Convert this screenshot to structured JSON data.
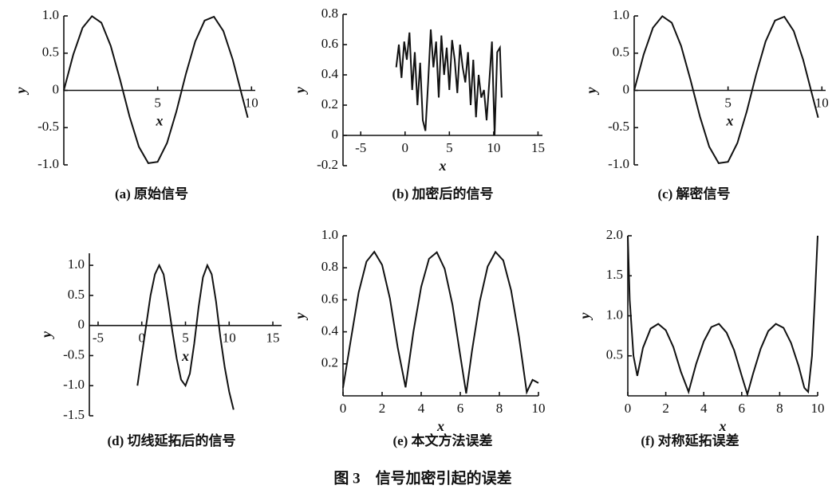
{
  "caption": "图 3    信号加密引起的误差",
  "chart_data": [
    {
      "type": "line",
      "caption": "(a) 原始信号",
      "xlabel": "x",
      "ylabel": "y",
      "color": "#111111",
      "x": [
        0,
        0.5,
        1,
        1.5,
        2,
        2.5,
        3,
        3.5,
        4,
        4.5,
        5,
        5.5,
        6,
        6.5,
        7,
        7.5,
        8,
        8.5,
        9,
        9.5,
        9.8
      ],
      "values": [
        0,
        0.479,
        0.841,
        0.997,
        0.909,
        0.598,
        0.141,
        -0.351,
        -0.757,
        -0.978,
        -0.959,
        -0.706,
        -0.279,
        0.215,
        0.657,
        0.938,
        0.989,
        0.798,
        0.412,
        -0.075,
        -0.366
      ],
      "xlim": [
        0,
        10.2
      ],
      "ylim": [
        -1,
        1
      ],
      "xticks": [
        5,
        10
      ],
      "yticks": [
        {
          "value": 1,
          "label": "1.0"
        },
        0.5,
        0,
        -0.5,
        {
          "value": -1,
          "label": "-1.0"
        }
      ]
    },
    {
      "type": "line",
      "caption": "(b) 加密后的信号",
      "xlabel": "x",
      "ylabel": "y",
      "color": "#111111",
      "x": [
        -1,
        -0.7,
        -0.4,
        -0.1,
        0.2,
        0.5,
        0.8,
        1.1,
        1.4,
        1.7,
        2.0,
        2.3,
        2.6,
        2.9,
        3.2,
        3.5,
        3.8,
        4.1,
        4.4,
        4.7,
        5.0,
        5.3,
        5.6,
        5.9,
        6.2,
        6.5,
        6.8,
        7.1,
        7.4,
        7.7,
        8.0,
        8.3,
        8.6,
        8.9,
        9.2,
        9.5,
        9.8,
        10.1,
        10.4,
        10.7,
        10.9
      ],
      "values": [
        0.45,
        0.6,
        0.38,
        0.62,
        0.5,
        0.68,
        0.3,
        0.55,
        0.2,
        0.48,
        0.1,
        0.03,
        0.35,
        0.7,
        0.45,
        0.62,
        0.25,
        0.66,
        0.4,
        0.58,
        0.3,
        0.63,
        0.5,
        0.28,
        0.6,
        0.45,
        0.35,
        0.55,
        0.2,
        0.5,
        0.12,
        0.4,
        0.25,
        0.3,
        0.1,
        0.35,
        0.62,
        0,
        0.55,
        0.58,
        0.25
      ],
      "xlim": [
        -7,
        15.5
      ],
      "ylim": [
        -0.2,
        0.8
      ],
      "xticks": [
        -5,
        0,
        5,
        10,
        15
      ],
      "yticks": [
        0.8,
        0.6,
        0.4,
        0.2,
        0,
        -0.2
      ]
    },
    {
      "type": "line",
      "caption": "(c) 解密信号",
      "xlabel": "x",
      "ylabel": "y",
      "color": "#111111",
      "x": [
        0,
        0.5,
        1,
        1.5,
        2,
        2.5,
        3,
        3.5,
        4,
        4.5,
        5,
        5.5,
        6,
        6.5,
        7,
        7.5,
        8,
        8.5,
        9,
        9.5,
        9.8
      ],
      "values": [
        0,
        0.479,
        0.841,
        0.997,
        0.909,
        0.598,
        0.141,
        -0.351,
        -0.757,
        -0.978,
        -0.959,
        -0.706,
        -0.279,
        0.215,
        0.657,
        0.938,
        0.989,
        0.798,
        0.412,
        -0.075,
        -0.366
      ],
      "xlim": [
        0,
        10.2
      ],
      "ylim": [
        -1,
        1
      ],
      "xticks": [
        5,
        10
      ],
      "yticks": [
        {
          "value": 1,
          "label": "1.0"
        },
        0.5,
        0,
        -0.5,
        {
          "value": -1,
          "label": "-1.0"
        }
      ]
    },
    {
      "type": "line",
      "caption": "(d) 切线延拓后的信号",
      "xlabel": "x",
      "ylabel": "y",
      "color": "#111111",
      "x": [
        -0.5,
        0,
        0.5,
        1,
        1.5,
        2,
        2.5,
        3,
        3.5,
        4,
        4.5,
        5,
        5.5,
        6,
        6.5,
        7,
        7.5,
        8,
        8.5,
        9,
        9.5,
        10,
        10.5
      ],
      "values": [
        -1,
        -0.5,
        0,
        0.5,
        0.85,
        1,
        0.85,
        0.4,
        -0.1,
        -0.55,
        -0.9,
        -1,
        -0.8,
        -0.3,
        0.3,
        0.8,
        1,
        0.85,
        0.4,
        -0.2,
        -0.7,
        -1.1,
        -1.4
      ],
      "xlim": [
        -6,
        16
      ],
      "ylim": [
        -1.5,
        1.2
      ],
      "xticks": [
        -5,
        0,
        5,
        10,
        15
      ],
      "yticks": [
        {
          "value": 1,
          "label": "1.0"
        },
        0.5,
        0,
        -0.5,
        {
          "value": -1,
          "label": "-1.0"
        },
        -1.5
      ]
    },
    {
      "type": "line",
      "caption": "(e) 本文方法误差",
      "xlabel": "x",
      "ylabel": "y",
      "color": "#111111",
      "x": [
        0,
        0.4,
        0.8,
        1.2,
        1.6,
        2.0,
        2.4,
        2.8,
        3.2,
        3.6,
        4.0,
        4.4,
        4.8,
        5.2,
        5.6,
        6.0,
        6.3,
        6.6,
        7.0,
        7.4,
        7.8,
        8.2,
        8.6,
        9.0,
        9.4,
        9.7,
        10
      ],
      "values": [
        0.05,
        0.35,
        0.646,
        0.839,
        0.9,
        0.818,
        0.608,
        0.301,
        0.053,
        0.399,
        0.681,
        0.856,
        0.897,
        0.794,
        0.569,
        0.251,
        0.015,
        0.281,
        0.591,
        0.808,
        0.899,
        0.846,
        0.659,
        0.371,
        0.023,
        0.1,
        0.08
      ],
      "xlim": [
        0,
        10
      ],
      "ylim": [
        0,
        1
      ],
      "xticks": [
        0,
        2,
        4,
        6,
        8,
        10
      ],
      "yticks": [
        0.2,
        0.4,
        0.6,
        0.8,
        {
          "value": 1,
          "label": "1.0"
        }
      ]
    },
    {
      "type": "line",
      "caption": "(f) 对称延拓误差",
      "xlabel": "x",
      "ylabel": "y",
      "color": "#111111",
      "x": [
        0,
        0.1,
        0.3,
        0.5,
        0.8,
        1.2,
        1.6,
        2.0,
        2.4,
        2.8,
        3.2,
        3.6,
        4.0,
        4.4,
        4.8,
        5.2,
        5.6,
        6.0,
        6.3,
        6.6,
        7.0,
        7.4,
        7.8,
        8.2,
        8.6,
        9.0,
        9.3,
        9.5,
        9.7,
        9.85,
        10
      ],
      "values": [
        2,
        1.2,
        0.5,
        0.25,
        0.6,
        0.84,
        0.9,
        0.82,
        0.61,
        0.3,
        0.05,
        0.4,
        0.68,
        0.86,
        0.9,
        0.79,
        0.57,
        0.25,
        0.02,
        0.28,
        0.59,
        0.81,
        0.9,
        0.85,
        0.66,
        0.37,
        0.1,
        0.05,
        0.5,
        1.2,
        2
      ],
      "xlim": [
        0,
        10
      ],
      "ylim": [
        0,
        2
      ],
      "xticks": [
        0,
        2,
        4,
        6,
        8,
        10
      ],
      "yticks": [
        0.5,
        {
          "value": 1,
          "label": "1.0"
        },
        1.5,
        {
          "value": 2,
          "label": "2.0"
        }
      ]
    }
  ]
}
